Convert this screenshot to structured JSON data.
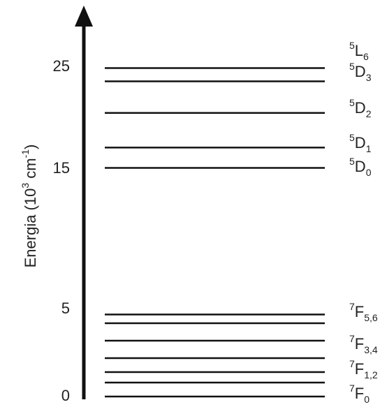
{
  "chart_data": {
    "type": "levels",
    "y_label": {
      "text": "Energia (10",
      "sup1": "3",
      "mid": " cm",
      "sup2": "-1",
      "end": ")"
    },
    "yticks": [
      0,
      5,
      15,
      25
    ],
    "values": [
      0,
      0.8,
      1.4,
      2.2,
      3.2,
      4.2,
      4.7,
      15.1,
      17.1,
      20.5,
      23.6,
      24.9
    ],
    "color": "#111111",
    "level_labels": [
      {
        "sup": "5",
        "term": "L",
        "sub": "6"
      },
      {
        "sup": "5",
        "term": "D",
        "sub": "3"
      },
      {
        "sup": "5",
        "term": "D",
        "sub": "2"
      },
      {
        "sup": "5",
        "term": "D",
        "sub": "1"
      },
      {
        "sup": "5",
        "term": "D",
        "sub": "0"
      },
      {
        "sup": "7",
        "term": "F",
        "sub": "5,6"
      },
      {
        "sup": "7",
        "term": "F",
        "sub": "3,4"
      },
      {
        "sup": "7",
        "term": "F",
        "sub": "1,2"
      },
      {
        "sup": "7",
        "term": "F",
        "sub": "0"
      }
    ]
  }
}
